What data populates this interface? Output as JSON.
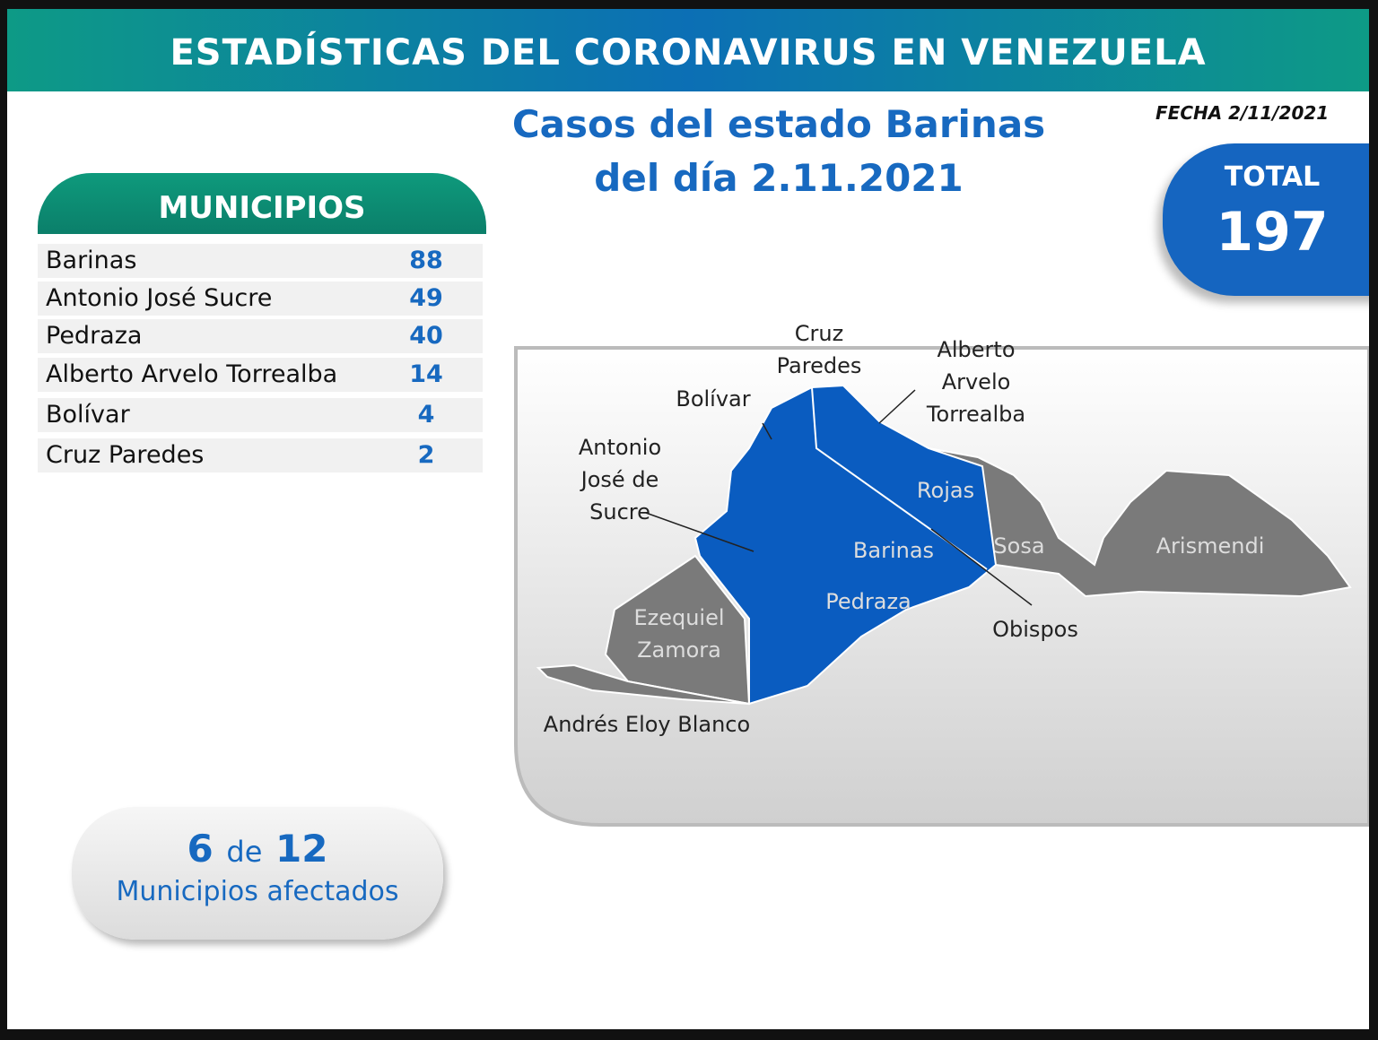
{
  "header": {
    "title": "ESTADÍSTICAS DEL CORONAVIRUS EN VENEZUELA"
  },
  "subtitle": [
    "Casos del estado Barinas",
    "del día 2.11.2021"
  ],
  "fecha": "FECHA 2/11/2021",
  "total": {
    "label": "TOTAL",
    "value": "197"
  },
  "table": {
    "header": "MUNICIPIOS",
    "rows": [
      [
        "Barinas",
        "88"
      ],
      [
        "Antonio José Sucre",
        "49"
      ],
      [
        "Pedraza",
        "40"
      ],
      [
        "Alberto Arvelo Torrealba",
        "14"
      ],
      [
        "Bolívar",
        "4"
      ],
      [
        "Cruz Paredes",
        "2"
      ]
    ]
  },
  "summary": {
    "affected": "6",
    "of": "de",
    "total": "12",
    "label": "Municipios afectados"
  },
  "map": {
    "labels": [
      {
        "lines": [
          "Cruz",
          "Paredes"
        ]
      },
      {
        "lines": [
          "Alberto",
          "Arvelo",
          "Torrealba"
        ]
      },
      {
        "lines": [
          "Bolívar"
        ]
      },
      {
        "lines": [
          "Antonio",
          "José de",
          "Sucre"
        ]
      },
      {
        "lines": [
          "Rojas"
        ]
      },
      {
        "lines": [
          "Barinas"
        ]
      },
      {
        "lines": [
          "Sosa"
        ]
      },
      {
        "lines": [
          "Arismendi"
        ]
      },
      {
        "lines": [
          "Pedraza"
        ]
      },
      {
        "lines": [
          "Ezequiel",
          "Zamora"
        ]
      },
      {
        "lines": [
          "Obispos"
        ]
      },
      {
        "lines": [
          "Andrés Eloy Blanco"
        ]
      }
    ]
  }
}
